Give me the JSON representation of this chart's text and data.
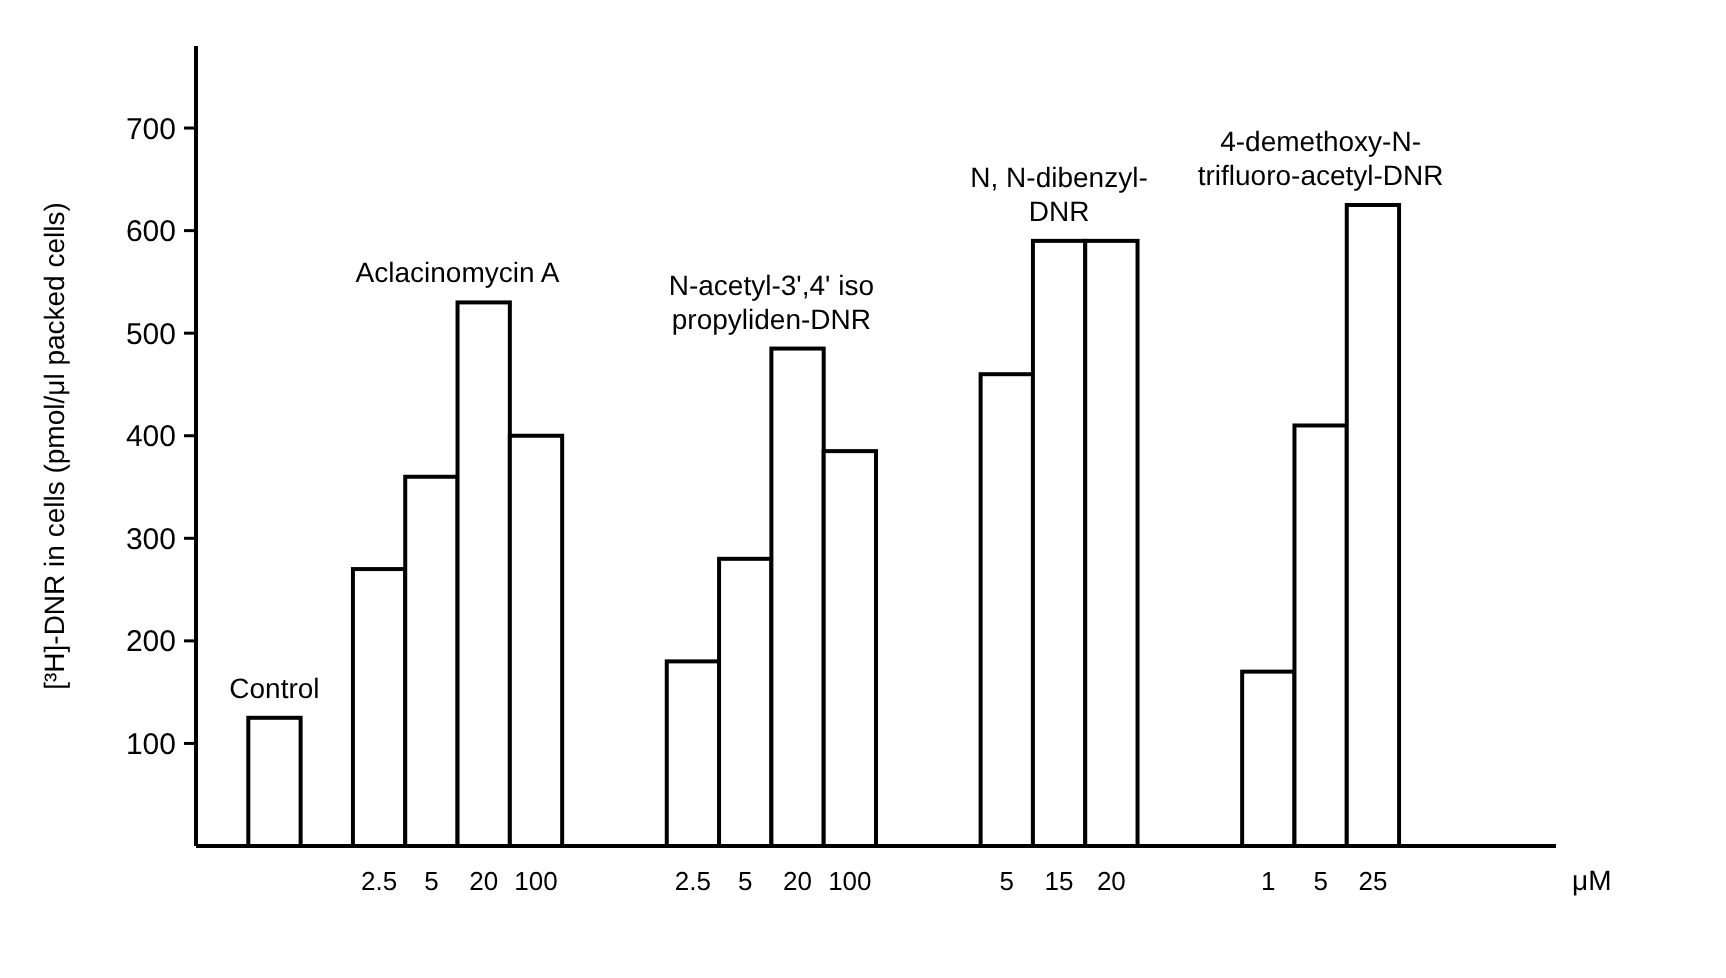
{
  "chart_data": {
    "type": "bar",
    "xlabel": "μM",
    "ylabel": "[³H]-DNR in cells (pmol/μl packed cells)",
    "categories": [
      null,
      null,
      null,
      "2.5",
      "5",
      "20",
      "100",
      null,
      null,
      "2.5",
      "5",
      "20",
      "100",
      null,
      null,
      "5",
      "15",
      "20",
      null,
      null,
      "1",
      "5",
      "25",
      null,
      null,
      null
    ],
    "values": [
      null,
      125,
      null,
      270,
      360,
      530,
      400,
      null,
      null,
      180,
      280,
      485,
      385,
      null,
      null,
      460,
      590,
      590,
      null,
      null,
      170,
      410,
      625,
      null,
      null,
      null
    ],
    "color": "#ffffff",
    "ylim": [
      0,
      780
    ],
    "yticks": [
      100,
      200,
      300,
      400,
      500,
      600,
      700
    ],
    "grid": false,
    "annotations": [
      "Control",
      "Aclacinomycin A",
      "N-acetyl-3ʹ,4ʹ iso\npropyliden-DNR",
      "N, N-dibenzyl-\nDNR",
      "4-demethoxy-N-\ntrifluoro-acetyl-DNR"
    ]
  }
}
